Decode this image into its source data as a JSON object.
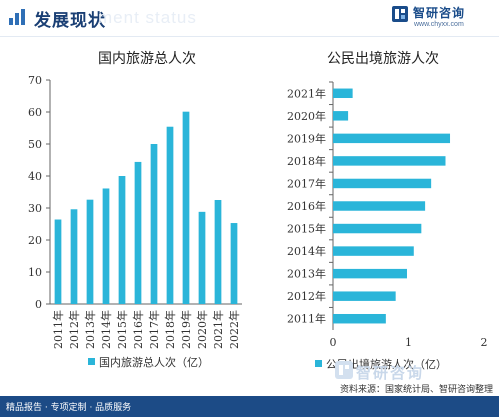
{
  "header": {
    "section_title": "发展现状",
    "ghost_text": "ment status",
    "brand_name": "智研咨询",
    "brand_url": "www.chyxx.com",
    "brand_icon": "zhiyan-logo-icon"
  },
  "footer": {
    "left": "精品报告 · 专项定制 · 品质服务",
    "source": "资料来源：国家统计局、智研咨询整理",
    "watermark": "智研咨询"
  },
  "colors": {
    "bar": "#2ab5d9",
    "brand": "#1c4b86"
  },
  "chart_data": [
    {
      "type": "bar",
      "title": "国内旅游总人次",
      "categories": [
        "2011年",
        "2012年",
        "2013年",
        "2014年",
        "2015年",
        "2016年",
        "2017年",
        "2018年",
        "2019年",
        "2020年",
        "2021年",
        "2022年"
      ],
      "values": [
        26.4,
        29.6,
        32.6,
        36.1,
        40.0,
        44.4,
        50.0,
        55.4,
        60.1,
        28.8,
        32.5,
        25.3
      ],
      "series": [
        {
          "name": "国内旅游总人次（亿）",
          "values": [
            26.4,
            29.6,
            32.6,
            36.1,
            40.0,
            44.4,
            50.0,
            55.4,
            60.1,
            28.8,
            32.5,
            25.3
          ]
        }
      ],
      "ylim": [
        0,
        70
      ],
      "yticks": [
        "0",
        "10",
        "20",
        "30",
        "40",
        "50",
        "60",
        "70"
      ],
      "grid": false,
      "legend": "bottom"
    },
    {
      "type": "bar",
      "orientation": "horizontal",
      "title": "公民出境旅游人次",
      "categories": [
        "2021年",
        "2020年",
        "2019年",
        "2018年",
        "2017年",
        "2016年",
        "2015年",
        "2014年",
        "2013年",
        "2012年",
        "2011年"
      ],
      "values": [
        0.26,
        0.2,
        1.55,
        1.49,
        1.3,
        1.22,
        1.17,
        1.07,
        0.98,
        0.83,
        0.7
      ],
      "series": [
        {
          "name": "公民出境旅游人次（亿）",
          "values": [
            0.26,
            0.2,
            1.55,
            1.49,
            1.3,
            1.22,
            1.17,
            1.07,
            0.98,
            0.83,
            0.7
          ]
        }
      ],
      "xlim": [
        0,
        2
      ],
      "xticks": [
        "0",
        "1",
        "2"
      ],
      "grid": false,
      "legend": "bottom"
    }
  ]
}
